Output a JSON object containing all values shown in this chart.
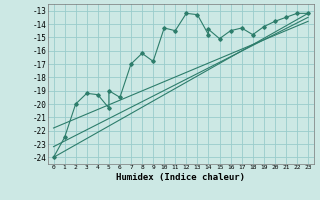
{
  "xlabel": "Humidex (Indice chaleur)",
  "bg_color": "#cce8e4",
  "grid_color": "#99cccc",
  "line_color": "#2d7d6b",
  "xlim": [
    -0.5,
    23.5
  ],
  "ylim": [
    -24.5,
    -12.5
  ],
  "xticks": [
    0,
    1,
    2,
    3,
    4,
    5,
    6,
    7,
    8,
    9,
    10,
    11,
    12,
    13,
    14,
    15,
    16,
    17,
    18,
    19,
    20,
    21,
    22,
    23
  ],
  "yticks": [
    -24,
    -23,
    -22,
    -21,
    -20,
    -19,
    -18,
    -17,
    -16,
    -15,
    -14,
    -13
  ],
  "line1_x": [
    0,
    1,
    2,
    3,
    4,
    5,
    5,
    6,
    7,
    8,
    9,
    10,
    11,
    12,
    13,
    14,
    14,
    15,
    16,
    17,
    18,
    19,
    20,
    21,
    22,
    23
  ],
  "line1_y": [
    -24,
    -22.5,
    -20,
    -19.2,
    -19.3,
    -20.3,
    -19.0,
    -19.5,
    -17.0,
    -16.2,
    -16.8,
    -14.3,
    -14.5,
    -13.2,
    -13.3,
    -14.8,
    -14.4,
    -15.1,
    -14.5,
    -14.3,
    -14.8,
    -14.2,
    -13.8,
    -13.5,
    -13.2,
    -13.2
  ],
  "line2_x": [
    0,
    23
  ],
  "line2_y": [
    -24.0,
    -13.2
  ],
  "line3_x": [
    0,
    23
  ],
  "line3_y": [
    -23.2,
    -13.5
  ],
  "line4_x": [
    0,
    23
  ],
  "line4_y": [
    -21.8,
    -13.8
  ]
}
